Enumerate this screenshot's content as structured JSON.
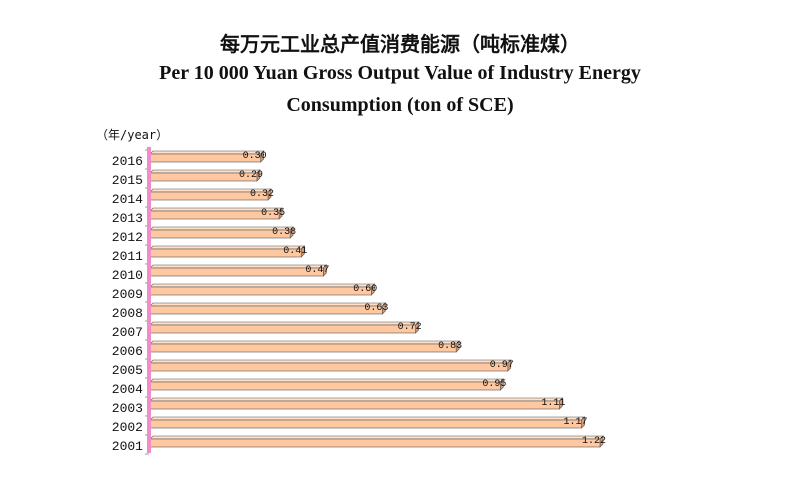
{
  "chart_data": {
    "type": "bar",
    "orientation": "horizontal",
    "title_cn": "每万元工业总产值消费能源（吨标准煤）",
    "title_en_line1": "Per 10 000 Yuan Gross Output Value of Industry Energy",
    "title_en_line2": "Consumption  (ton of SCE)",
    "ylabel": "（年/year）",
    "categories": [
      "2016",
      "2015",
      "2014",
      "2013",
      "2012",
      "2011",
      "2010",
      "2009",
      "2008",
      "2007",
      "2006",
      "2005",
      "2004",
      "2003",
      "2002",
      "2001"
    ],
    "values": [
      0.3,
      0.29,
      0.32,
      0.35,
      0.38,
      0.41,
      0.47,
      0.6,
      0.63,
      0.72,
      0.83,
      0.97,
      0.95,
      1.11,
      1.17,
      1.22
    ],
    "value_labels": [
      "0.30",
      "0.29",
      "0.32",
      "0.35",
      "0.38",
      "0.41",
      "0.47",
      "0.60",
      "0.63",
      "0.72",
      "0.83",
      "0.97",
      "0.95",
      "1.11",
      "1.17",
      "1.22"
    ],
    "xlim": [
      0,
      1.22
    ],
    "grid": false,
    "legend": "none",
    "colors": {
      "bar": "#FFC8A0",
      "bar_edge": "#555555",
      "axis": "#F08CC8"
    }
  }
}
